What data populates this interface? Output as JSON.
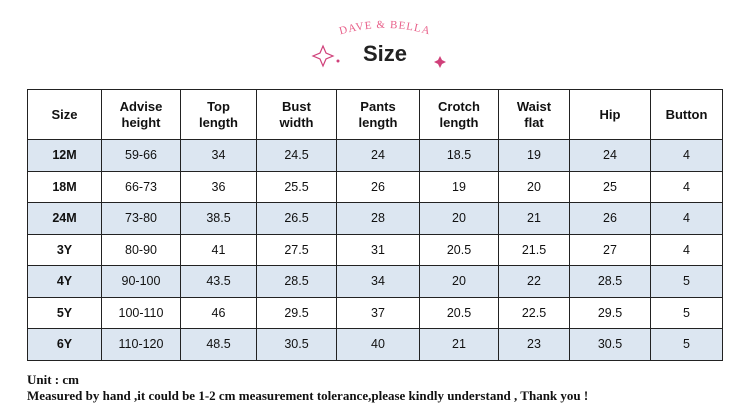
{
  "header": {
    "brand": "DAVE & BELLA",
    "title": "Size"
  },
  "table": {
    "columns": [
      "Size",
      "Advise\nheight",
      "Top\nlength",
      "Bust\nwidth",
      "Pants\nlength",
      "Crotch\nlength",
      "Waist\nflat",
      "Hip",
      "Button"
    ],
    "rows": [
      [
        "12M",
        "59-66",
        "34",
        "24.5",
        "24",
        "18.5",
        "19",
        "24",
        "4"
      ],
      [
        "18M",
        "66-73",
        "36",
        "25.5",
        "26",
        "19",
        "20",
        "25",
        "4"
      ],
      [
        "24M",
        "73-80",
        "38.5",
        "26.5",
        "28",
        "20",
        "21",
        "26",
        "4"
      ],
      [
        "3Y",
        "80-90",
        "41",
        "27.5",
        "31",
        "20.5",
        "21.5",
        "27",
        "4"
      ],
      [
        "4Y",
        "90-100",
        "43.5",
        "28.5",
        "34",
        "20",
        "22",
        "28.5",
        "5"
      ],
      [
        "5Y",
        "100-110",
        "46",
        "29.5",
        "37",
        "20.5",
        "22.5",
        "29.5",
        "5"
      ],
      [
        "6Y",
        "110-120",
        "48.5",
        "30.5",
        "40",
        "21",
        "23",
        "30.5",
        "5"
      ]
    ]
  },
  "footer": {
    "unit": "Unit : cm",
    "note": "Measured by hand ,it could be 1-2 cm measurement tolerance,please kindly understand , Thank you !"
  }
}
